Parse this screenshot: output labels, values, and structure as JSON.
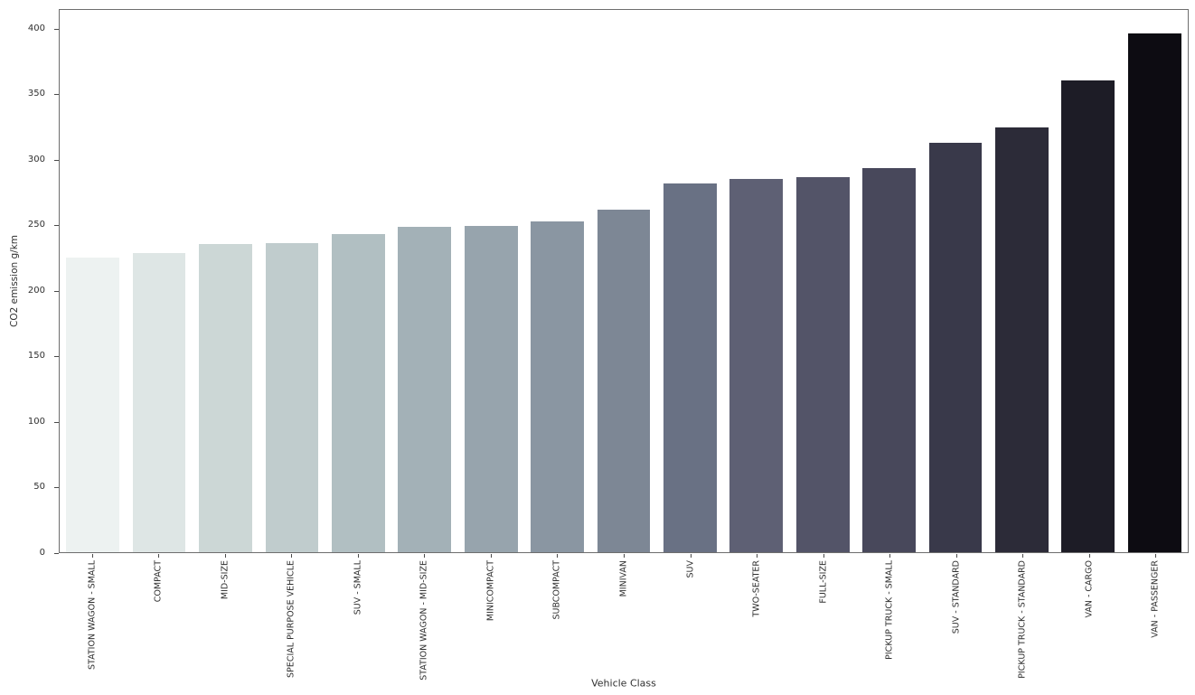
{
  "accent_colors": {
    "spine": "#6e6e6e",
    "tick": "#4a4a4a",
    "text": "#303030",
    "background": "#ffffff"
  },
  "chart_data": {
    "type": "bar",
    "title": "",
    "xlabel": "Vehicle Class",
    "ylabel": "CO2 emission g/km",
    "grid": false,
    "legend": null,
    "yticks": [
      0,
      50,
      100,
      150,
      200,
      250,
      300,
      350,
      400
    ],
    "ylim": [
      0,
      415
    ],
    "categories": [
      "STATION WAGON - SMALL",
      "COMPACT",
      "MID-SIZE",
      "SPECIAL PURPOSE VEHICLE",
      "SUV - SMALL",
      "STATION WAGON - MID-SIZE",
      "MINICOMPACT",
      "SUBCOMPACT",
      "MINIVAN",
      "SUV",
      "TWO-SEATER",
      "FULL-SIZE",
      "PICKUP TRUCK - SMALL",
      "SUV - STANDARD",
      "PICKUP TRUCK - STANDARD",
      "VAN - CARGO",
      "VAN - PASSENGER"
    ],
    "values": [
      225,
      228,
      235,
      236,
      243,
      248,
      249,
      252,
      261,
      281,
      285,
      286,
      293,
      312,
      324,
      360,
      396
    ],
    "bar_colors": [
      "#edf2f1",
      "#dee6e5",
      "#ccd7d6",
      "#c0cccd",
      "#b1bfc2",
      "#a3b1b7",
      "#97a4ad",
      "#8a96a2",
      "#7d8795",
      "#697184",
      "#5e6074",
      "#535468",
      "#48485b",
      "#39394a",
      "#2c2b38",
      "#1d1c26",
      "#0d0c12"
    ]
  }
}
